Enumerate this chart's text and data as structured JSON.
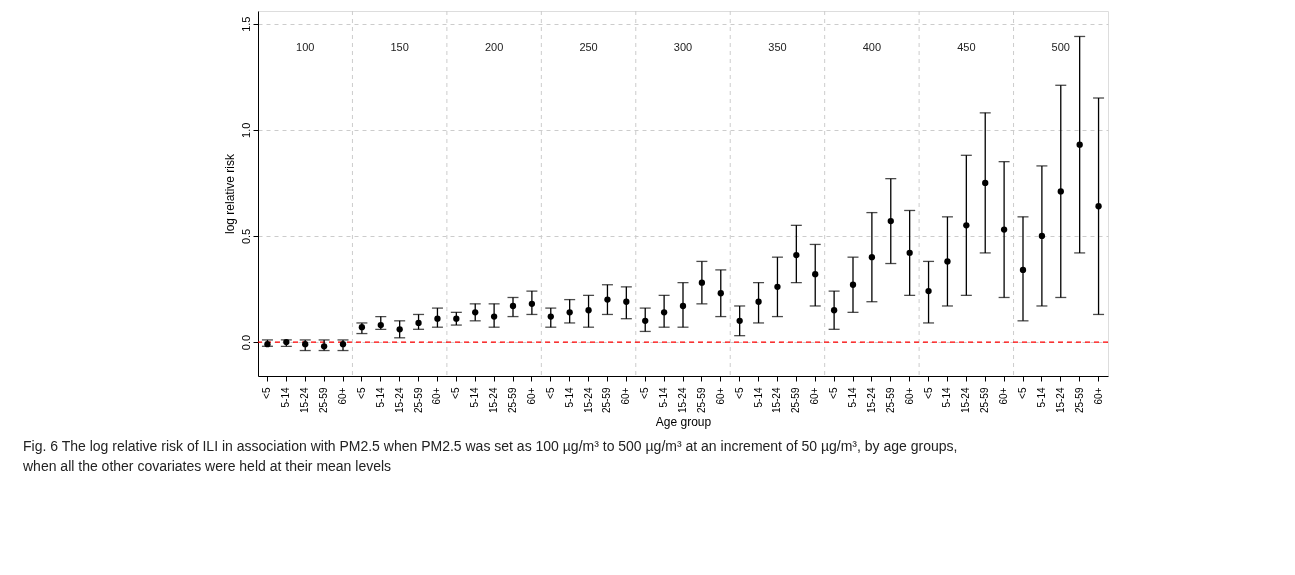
{
  "chart_data": {
    "type": "scatter",
    "xlabel": "Age group",
    "ylabel": "log relative risk",
    "categories": [
      "<5",
      "5-14",
      "15-24",
      "25-59",
      "60+",
      "<5",
      "5-14",
      "15-24",
      "25-59",
      "60+",
      "<5",
      "5-14",
      "15-24",
      "25-59",
      "60+",
      "<5",
      "5-14",
      "15-24",
      "25-59",
      "60+",
      "<5",
      "5-14",
      "15-24",
      "25-59",
      "60+",
      "<5",
      "5-14",
      "15-24",
      "25-59",
      "60+",
      "<5",
      "5-14",
      "15-24",
      "25-59",
      "60+",
      "<5",
      "5-14",
      "15-24",
      "25-59",
      "60+",
      "<5",
      "5-14",
      "15-24",
      "25-59",
      "60+"
    ],
    "series": [
      {
        "color": "#000000",
        "values": [
          -0.01,
          0.0,
          -0.01,
          -0.02,
          -0.01,
          0.07,
          0.08,
          0.06,
          0.09,
          0.11,
          0.11,
          0.14,
          0.12,
          0.17,
          0.18,
          0.12,
          0.14,
          0.15,
          0.2,
          0.19,
          0.1,
          0.14,
          0.17,
          0.28,
          0.23,
          0.1,
          0.19,
          0.26,
          0.41,
          0.32,
          0.15,
          0.27,
          0.4,
          0.57,
          0.42,
          0.24,
          0.38,
          0.55,
          0.75,
          0.53,
          0.34,
          0.5,
          0.71,
          0.93,
          0.64
        ],
        "errors": [
          [
            -0.02,
            0.01
          ],
          [
            -0.02,
            0.01
          ],
          [
            -0.04,
            0.01
          ],
          [
            -0.04,
            0.01
          ],
          [
            -0.04,
            0.01
          ],
          [
            0.04,
            0.09
          ],
          [
            0.06,
            0.12
          ],
          [
            0.02,
            0.1
          ],
          [
            0.06,
            0.13
          ],
          [
            0.07,
            0.16
          ],
          [
            0.08,
            0.14
          ],
          [
            0.1,
            0.18
          ],
          [
            0.07,
            0.18
          ],
          [
            0.12,
            0.21
          ],
          [
            0.13,
            0.24
          ],
          [
            0.07,
            0.16
          ],
          [
            0.09,
            0.2
          ],
          [
            0.07,
            0.22
          ],
          [
            0.13,
            0.27
          ],
          [
            0.11,
            0.26
          ],
          [
            0.05,
            0.16
          ],
          [
            0.07,
            0.22
          ],
          [
            0.07,
            0.28
          ],
          [
            0.18,
            0.38
          ],
          [
            0.12,
            0.34
          ],
          [
            0.03,
            0.17
          ],
          [
            0.09,
            0.28
          ],
          [
            0.12,
            0.4
          ],
          [
            0.28,
            0.55
          ],
          [
            0.17,
            0.46
          ],
          [
            0.06,
            0.24
          ],
          [
            0.14,
            0.4
          ],
          [
            0.19,
            0.61
          ],
          [
            0.37,
            0.77
          ],
          [
            0.22,
            0.62
          ],
          [
            0.09,
            0.38
          ],
          [
            0.17,
            0.59
          ],
          [
            0.22,
            0.88
          ],
          [
            0.42,
            1.08
          ],
          [
            0.21,
            0.85
          ],
          [
            0.1,
            0.59
          ],
          [
            0.17,
            0.83
          ],
          [
            0.21,
            1.21
          ],
          [
            0.42,
            1.44
          ],
          [
            0.13,
            1.15
          ]
        ]
      }
    ],
    "ylim": [
      -0.16,
      1.56
    ],
    "yticks": [
      {
        "value": 0,
        "label": "0.0"
      },
      {
        "value": 0.5,
        "label": "0.5"
      },
      {
        "value": 1.0,
        "label": "1.0"
      },
      {
        "value": 1.5,
        "label": "1.5"
      }
    ],
    "grid": "y",
    "marker": "circle",
    "ref_lines": [
      {
        "axis": "y",
        "value": 0,
        "color": "#ff0000",
        "line_style": "dashed"
      }
    ],
    "annotations": [
      "100",
      "150",
      "200",
      "250",
      "300",
      "350",
      "400",
      "450",
      "500",
      "Fig. 6 The log relative risk of ILI in association with PM2.5 when PM2.5 was set as 100 µg/m³ to 500 µg/m³ at an increment of 50 µg/m³, by age groups, when all the other covariates were held at their mean levels"
    ]
  }
}
